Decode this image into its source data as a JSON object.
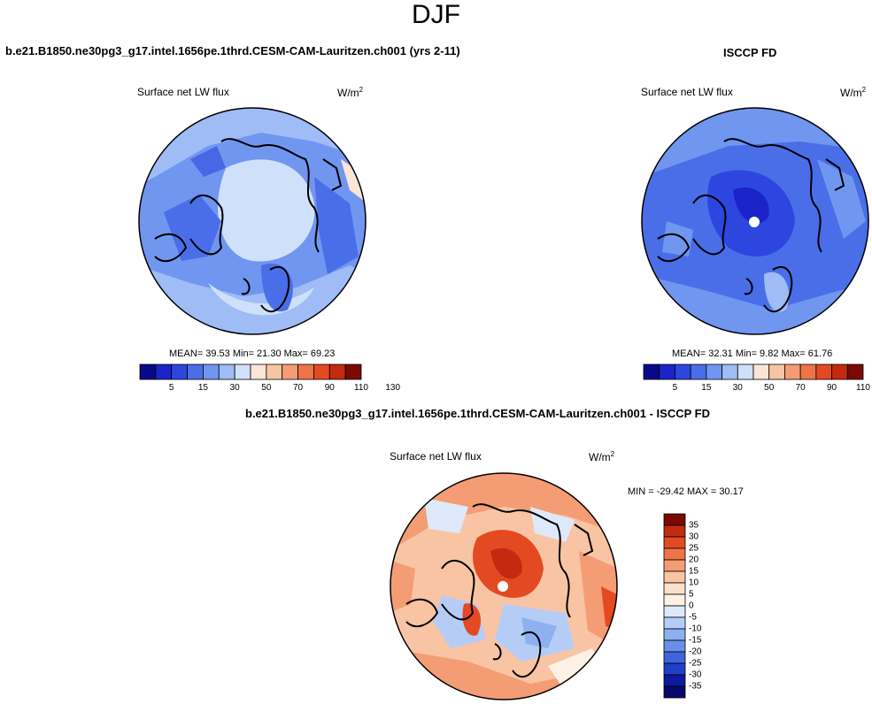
{
  "page": {
    "title": "DJF"
  },
  "panels": {
    "model": {
      "case": "b.e21.B1850.ne30pg3_g17.intel.1656pe.1thrd.CESM-CAM-Lauritzen.ch001 (yrs 2-11)",
      "variable": "Surface net LW flux",
      "units": "W/m",
      "units_sup": "2",
      "stats": "MEAN=  39.53  Min=  21.30  Max=  69.23"
    },
    "obs": {
      "case": "ISCCP FD",
      "variable": "Surface net LW flux",
      "units": "W/m",
      "units_sup": "2",
      "stats": "MEAN=  32.31  Min=   9.82  Max=  61.76"
    },
    "diff": {
      "case": "b.e21.B1850.ne30pg3_g17.intel.1656pe.1thrd.CESM-CAM-Lauritzen.ch001 - ISCCP FD",
      "variable": "Surface net LW flux",
      "units": "W/m",
      "units_sup": "2",
      "stats": "MIN = -29.42 MAX =  30.17"
    }
  },
  "colorbar_main": {
    "tick_labels": [
      "5",
      "15",
      "30",
      "50",
      "70",
      "90",
      "110",
      "130"
    ],
    "colors": [
      "#08088a",
      "#1a24c8",
      "#2d46e0",
      "#4a6ee8",
      "#7196f0",
      "#9fbcf6",
      "#cfe0fb",
      "#fbe6d6",
      "#f9c4a4",
      "#f49c74",
      "#ee7448",
      "#e44a22",
      "#c42a10",
      "#7a0a04"
    ]
  },
  "colorbar_diff": {
    "tick_labels": [
      "35",
      "30",
      "25",
      "20",
      "15",
      "10",
      "5",
      "0",
      "-5",
      "-10",
      "-15",
      "-20",
      "-25",
      "-30",
      "-35"
    ],
    "colors": [
      "#7a0a04",
      "#c42a10",
      "#e44a22",
      "#ee7448",
      "#f49c74",
      "#f9c4a4",
      "#fbe0cc",
      "#fdf1e6",
      "#dde9fb",
      "#b5cdf6",
      "#8eb0f0",
      "#6890ea",
      "#3e64de",
      "#2040c8",
      "#0c1aa0",
      "#08086a"
    ]
  }
}
